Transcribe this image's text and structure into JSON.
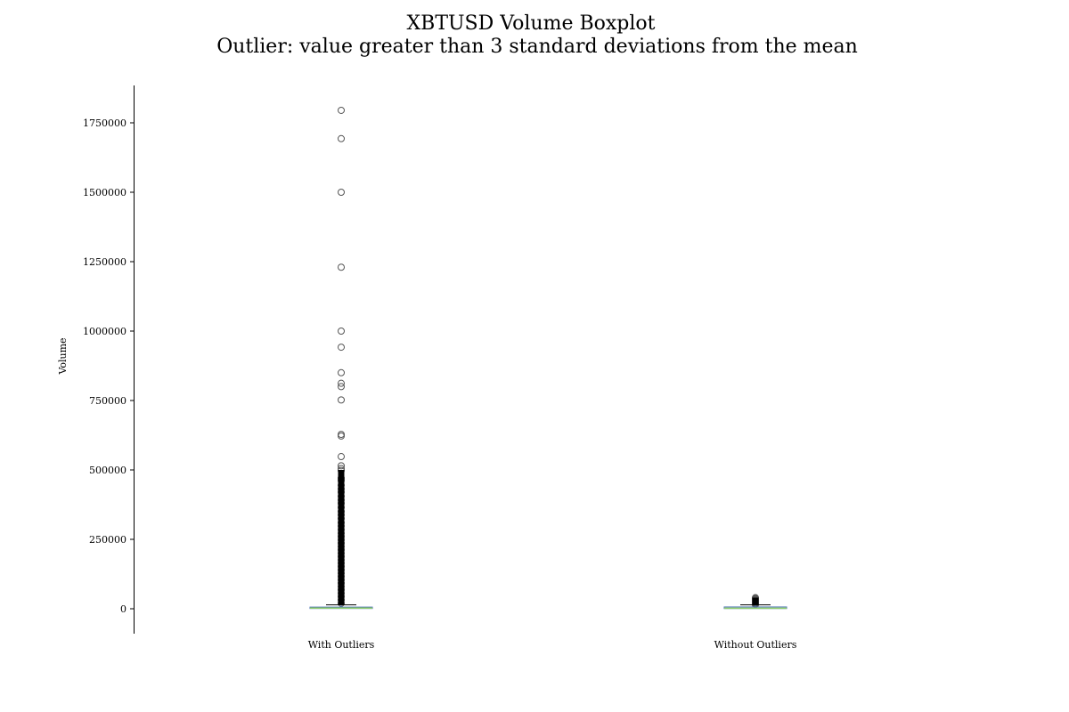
{
  "chart_data": {
    "type": "box",
    "title": "XBTUSD Volume Boxplot",
    "subtitle": "Outlier: value greater than 3 standard deviations from the mean",
    "xlabel": "",
    "ylabel": "Volume",
    "ylim": [
      -90000,
      1880000
    ],
    "yticks": [
      0,
      250000,
      500000,
      750000,
      1000000,
      1250000,
      1500000,
      1750000
    ],
    "ytick_labels": [
      "0",
      "250000",
      "500000",
      "750000",
      "1000000",
      "1250000",
      "1500000",
      "1750000"
    ],
    "categories": [
      "With Outliers",
      "Without Outliers"
    ],
    "grid": false,
    "boxes": [
      {
        "name": "With Outliers",
        "whisker_low": 0,
        "q1": 1000,
        "median": 2500,
        "q3": 6000,
        "whisker_high": 14000,
        "outliers": [
          1795000,
          1693000,
          1500000,
          1230000,
          1000000,
          942000,
          850000,
          812000,
          800000,
          752000,
          628000,
          622000,
          548000,
          515000,
          505000,
          498000,
          470000,
          462000,
          445000,
          432000,
          420000,
          405000,
          392000,
          380000,
          365000,
          350000,
          338000,
          325000,
          310000,
          298000,
          285000,
          272000,
          260000,
          248000,
          236000,
          224000,
          212000,
          200000,
          188000,
          176000,
          164000,
          152000,
          140000,
          128000,
          116000,
          104000,
          92000,
          80000,
          68000,
          56000,
          44000,
          32000,
          20000
        ]
      },
      {
        "name": "Without Outliers",
        "whisker_low": 0,
        "q1": 900,
        "median": 2200,
        "q3": 6500,
        "whisker_high": 14000,
        "outliers": [
          40000,
          37500,
          35000,
          32500,
          30000,
          27500,
          25000,
          22500,
          20000,
          17500,
          15000
        ]
      }
    ],
    "colors": {
      "box": "#4c72b0",
      "median": "#8fce6a",
      "outlier": "#555555",
      "axis": "#000000"
    }
  }
}
